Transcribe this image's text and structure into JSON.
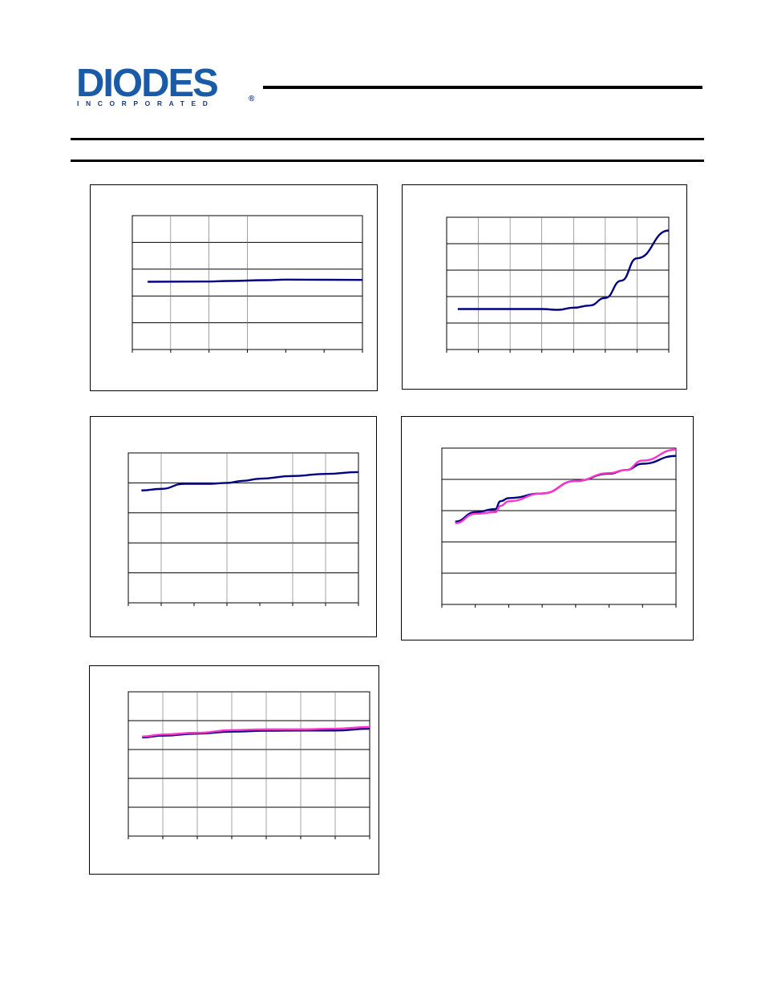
{
  "logo": {
    "wordmark": "DIODES",
    "tagline": "INCORPORATED",
    "registered_mark": "®"
  },
  "colors": {
    "brand_blue": "#1a5ba8",
    "series_navy": "#000080",
    "series_magenta": "#ff33cc"
  },
  "chart_data": [
    {
      "type": "line",
      "title": "",
      "xlabel": "",
      "ylabel": "",
      "x": [
        0,
        1,
        2,
        3,
        4,
        5,
        6
      ],
      "xlim": [
        0,
        6
      ],
      "ylim": [
        0,
        5
      ],
      "series": [
        {
          "values": [
            2.53,
            2.54,
            2.56,
            2.59,
            2.61,
            2.6
          ],
          "x": [
            0.4,
            2,
            2.5,
            3.5,
            4,
            6
          ]
        }
      ]
    },
    {
      "type": "line",
      "title": "",
      "xlabel": "",
      "ylabel": "",
      "x": [
        0,
        1,
        2,
        3,
        4,
        5,
        6,
        7
      ],
      "xlim": [
        0,
        7
      ],
      "ylim": [
        0,
        5
      ],
      "series": [
        {
          "x": [
            0.35,
            1,
            2,
            3,
            3.5,
            4,
            4.5,
            5,
            5.5,
            6,
            7
          ],
          "values": [
            1.53,
            1.53,
            1.53,
            1.53,
            1.5,
            1.58,
            1.66,
            1.95,
            2.6,
            3.45,
            4.5
          ]
        }
      ]
    },
    {
      "type": "line",
      "title": "",
      "xlabel": "",
      "ylabel": "",
      "x": [
        0,
        1,
        2,
        3,
        4,
        5,
        6,
        7
      ],
      "xlim": [
        0,
        7
      ],
      "ylim": [
        0,
        5
      ],
      "series": [
        {
          "x": [
            0.4,
            1,
            1.7,
            2,
            2.5,
            3,
            3.5,
            4,
            5,
            6,
            7
          ],
          "values": [
            3.75,
            3.8,
            3.97,
            3.97,
            3.97,
            4.0,
            4.07,
            4.14,
            4.23,
            4.3,
            4.36
          ]
        }
      ]
    },
    {
      "type": "line",
      "title": "",
      "xlabel": "",
      "ylabel": "",
      "x": [
        0,
        1,
        2,
        3,
        4,
        5,
        6,
        7
      ],
      "xlim": [
        0,
        7
      ],
      "ylim": [
        0,
        5
      ],
      "series": [
        {
          "x": [
            0.4,
            1,
            1.6,
            1.75,
            2,
            3,
            4,
            5,
            5.5,
            6,
            7
          ],
          "values": [
            2.65,
            2.95,
            3.05,
            3.3,
            3.4,
            3.55,
            3.95,
            4.18,
            4.3,
            4.5,
            4.75
          ]
        },
        {
          "x": [
            0.4,
            1,
            1.6,
            1.75,
            2,
            3,
            4,
            5,
            5.5,
            6,
            7
          ],
          "values": [
            2.6,
            2.9,
            2.95,
            3.15,
            3.3,
            3.55,
            3.95,
            4.2,
            4.3,
            4.6,
            4.95
          ]
        }
      ]
    },
    {
      "type": "line",
      "title": "",
      "xlabel": "",
      "ylabel": "",
      "x": [
        0,
        1,
        2,
        3,
        4,
        5,
        6,
        7
      ],
      "xlim": [
        0,
        7
      ],
      "ylim": [
        0,
        5
      ],
      "series": [
        {
          "x": [
            0.4,
            1,
            2,
            3,
            4,
            5,
            6,
            7
          ],
          "values": [
            3.42,
            3.48,
            3.55,
            3.62,
            3.65,
            3.66,
            3.66,
            3.72
          ]
        },
        {
          "x": [
            0.4,
            1,
            2,
            3,
            4,
            5,
            6,
            7
          ],
          "values": [
            3.45,
            3.52,
            3.58,
            3.67,
            3.7,
            3.7,
            3.72,
            3.78
          ]
        }
      ]
    }
  ]
}
